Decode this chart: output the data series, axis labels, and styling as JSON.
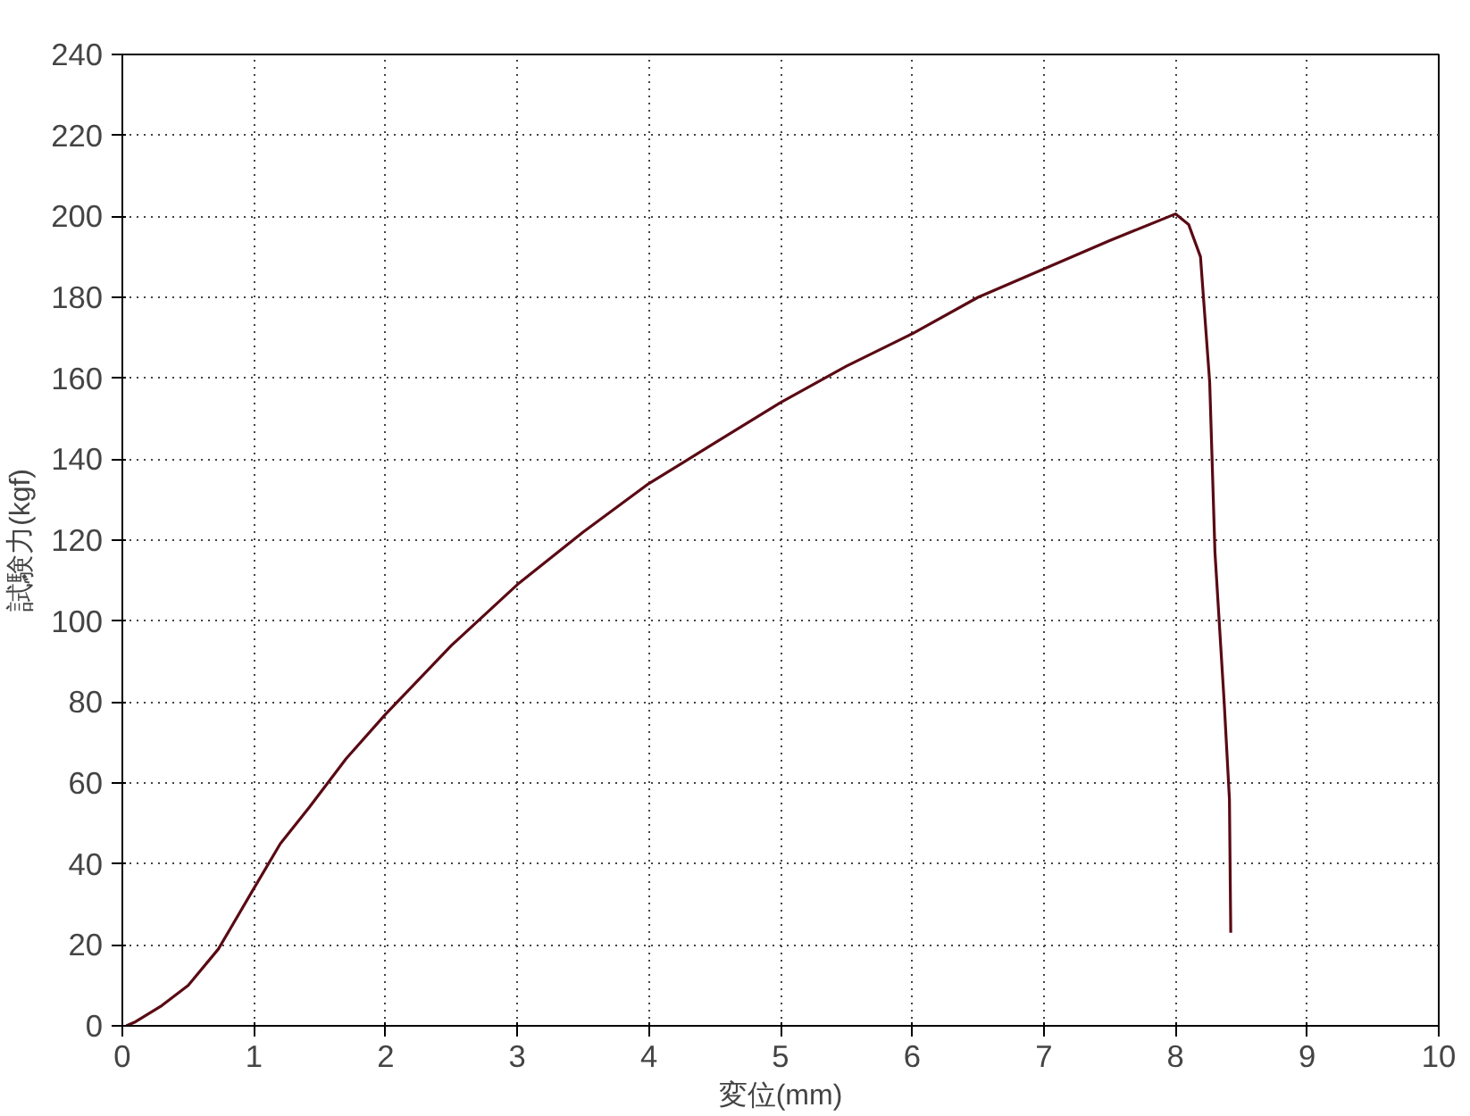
{
  "chart_data": {
    "type": "line",
    "xlabel": "変位(mm)",
    "ylabel": "試験力(kgf)",
    "x": [
      0.03,
      0.1,
      0.3,
      0.5,
      0.73,
      1.0,
      1.2,
      1.42,
      1.7,
      2.0,
      2.5,
      3.0,
      3.5,
      4.0,
      4.5,
      5.0,
      5.5,
      6.0,
      6.5,
      7.0,
      7.5,
      8.0,
      8.1,
      8.19,
      8.26,
      8.3,
      8.37,
      8.41,
      8.42
    ],
    "series": [
      {
        "color": "#5a0a14",
        "values": [
          0,
          1,
          5,
          10,
          19,
          34,
          45,
          54,
          66,
          77,
          94,
          109,
          122,
          134,
          144,
          154,
          163,
          171,
          180,
          187,
          194,
          200.6,
          198,
          190,
          159,
          117,
          80,
          56,
          23
        ]
      }
    ],
    "xlim": [
      0,
      10
    ],
    "ylim": [
      0,
      240
    ],
    "xticks": [
      0,
      1,
      2,
      3,
      4,
      5,
      6,
      7,
      8,
      9,
      10
    ],
    "yticks": [
      0,
      20,
      40,
      60,
      80,
      100,
      120,
      140,
      160,
      180,
      200,
      220,
      240
    ],
    "grid": true,
    "line_style": "solid"
  }
}
